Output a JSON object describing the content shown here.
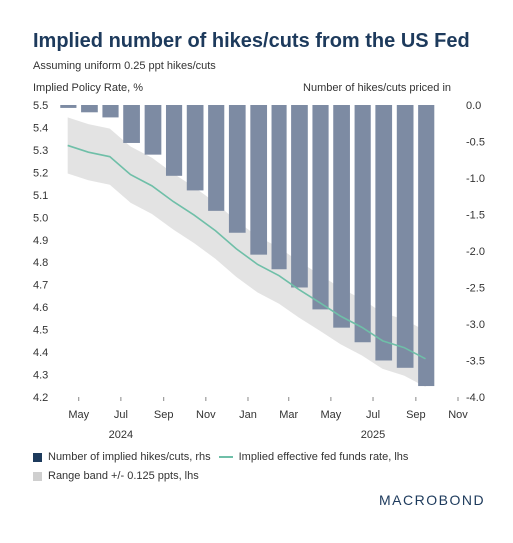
{
  "title": "Implied number of hikes/cuts from the US Fed",
  "subtitle": "Assuming uniform 0.25 ppt hikes/cuts",
  "colors": {
    "bars": "#7d8ba3",
    "line": "#6fbfa8",
    "band": "#dedede",
    "title": "#1d3a5c"
  },
  "chart_data": {
    "type": "bar+line",
    "left_axis": {
      "label": "Implied Policy Rate, %",
      "range": [
        4.2,
        5.5
      ],
      "ticks": [
        "5.5",
        "5.4",
        "5.3",
        "5.2",
        "5.1",
        "5.0",
        "4.9",
        "4.8",
        "4.7",
        "4.6",
        "4.5",
        "4.4",
        "4.3",
        "4.2"
      ]
    },
    "right_axis": {
      "label": "Number of hikes/cuts priced in",
      "range": [
        -4.0,
        0.0
      ],
      "ticks": [
        "0.0",
        "-0.5",
        "-1.0",
        "-1.5",
        "-2.0",
        "-2.5",
        "-3.0",
        "-3.5",
        "-4.0"
      ]
    },
    "x_axis": {
      "month_labels": [
        "May",
        "Jul",
        "Sep",
        "Nov",
        "Jan",
        "Mar",
        "May",
        "Jul",
        "Sep",
        "Nov"
      ],
      "year_labels": [
        "2024",
        "2025"
      ]
    },
    "bar_months": [
      "2024-04",
      "2024-05",
      "2024-06",
      "2024-07",
      "2024-08",
      "2024-09",
      "2024-10",
      "2024-11",
      "2024-12",
      "2025-01",
      "2025-02",
      "2025-03",
      "2025-04",
      "2025-05",
      "2025-06",
      "2025-07",
      "2025-08",
      "2025-09"
    ],
    "series": [
      {
        "name": "Number of implied hikes/cuts, rhs",
        "type": "bar",
        "axis": "right",
        "values": [
          -0.04,
          -0.1,
          -0.17,
          -0.52,
          -0.68,
          -0.97,
          -1.17,
          -1.45,
          -1.75,
          -2.05,
          -2.25,
          -2.5,
          -2.8,
          -3.05,
          -3.25,
          -3.5,
          -3.6,
          -3.85
        ]
      },
      {
        "name": "Implied effective fed funds rate, lhs",
        "type": "line",
        "axis": "left",
        "x": [
          "2024-04-15",
          "2024-05-15",
          "2024-06-15",
          "2024-07-15",
          "2024-08-15",
          "2024-09-15",
          "2024-10-15",
          "2024-11-15",
          "2024-12-15",
          "2025-01-15",
          "2025-02-15",
          "2025-03-15",
          "2025-04-15",
          "2025-05-15",
          "2025-06-15",
          "2025-07-15",
          "2025-08-15",
          "2025-09-15"
        ],
        "values": [
          5.32,
          5.29,
          5.27,
          5.19,
          5.14,
          5.07,
          5.01,
          4.94,
          4.86,
          4.79,
          4.74,
          4.68,
          4.62,
          4.56,
          4.51,
          4.45,
          4.42,
          4.37
        ]
      },
      {
        "name": "Range band +/- 0.125 ppts, lhs",
        "type": "band",
        "axis": "left",
        "half_width": 0.125
      }
    ]
  },
  "logo": "MACROBOND"
}
